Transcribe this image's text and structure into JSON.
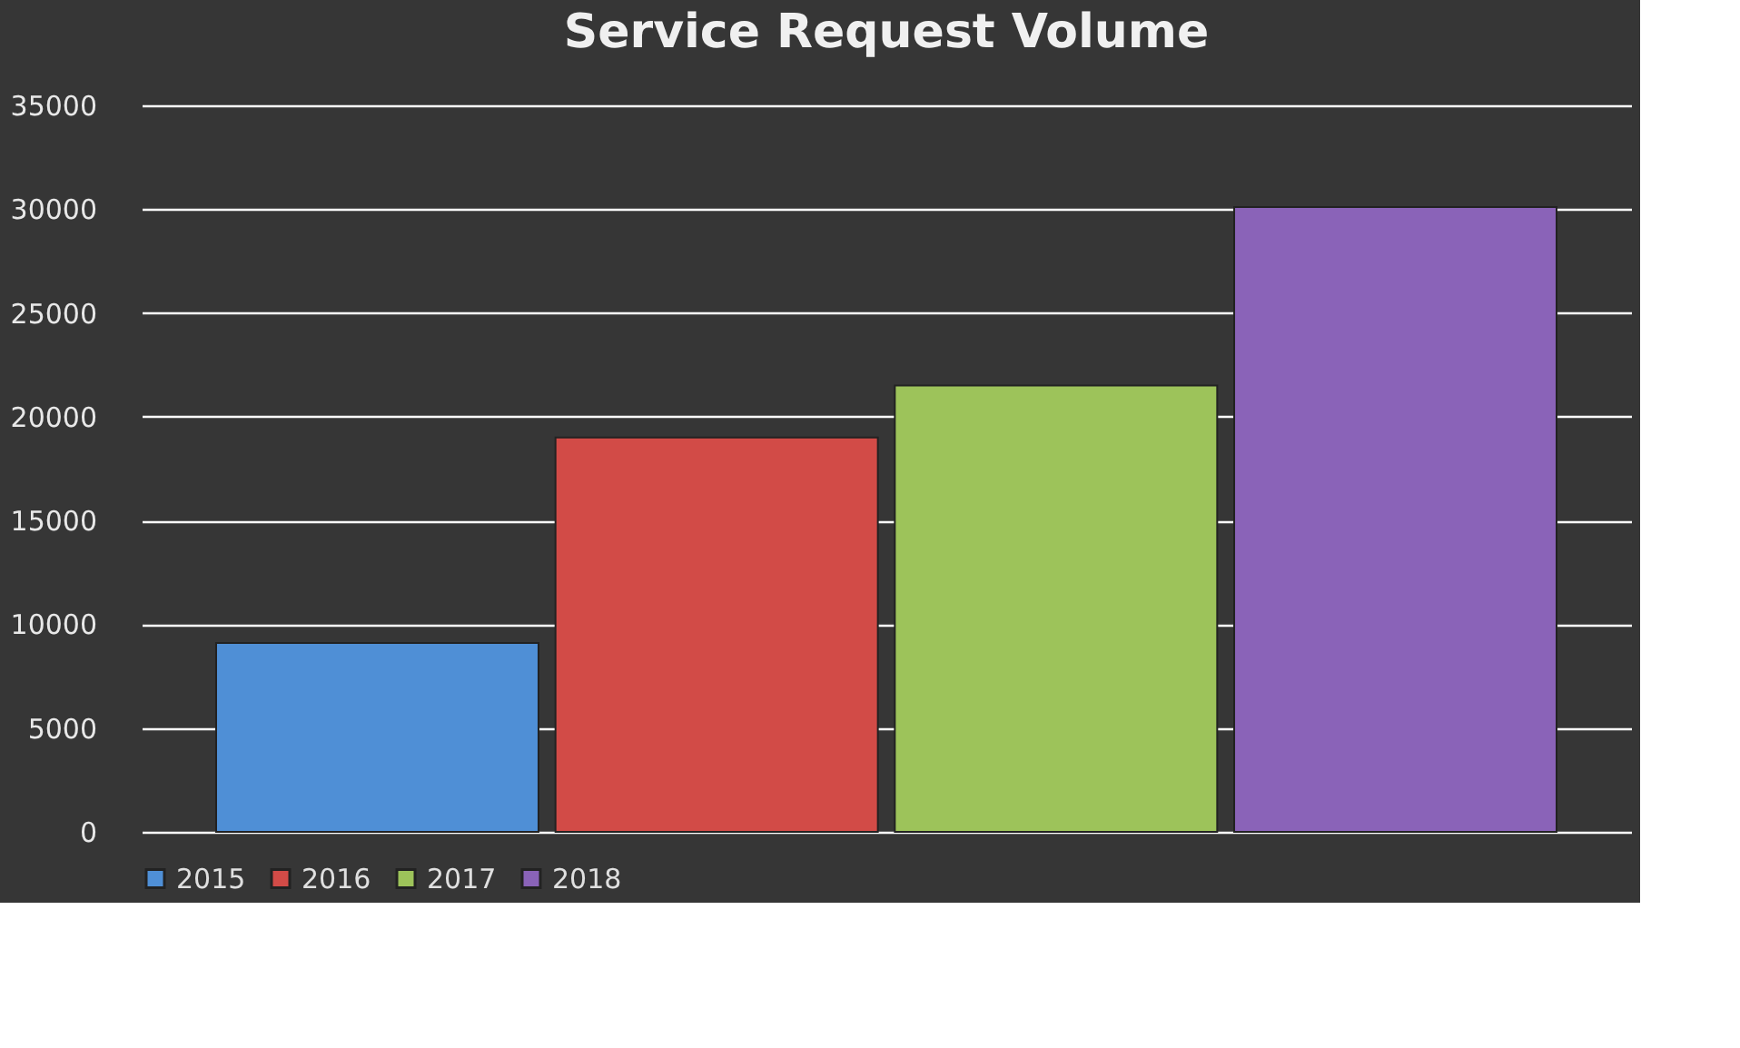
{
  "chart_data": {
    "type": "bar",
    "title": "Service Request  Volume",
    "categories": [
      null
    ],
    "series": [
      {
        "name": "2015",
        "color": "#4f8fd6",
        "values": [
          9100
        ]
      },
      {
        "name": "2016",
        "color": "#d24b47",
        "values": [
          19000
        ]
      },
      {
        "name": "2017",
        "color": "#9dc35a",
        "values": [
          21500
        ]
      },
      {
        "name": "2018",
        "color": "#8a63b8",
        "values": [
          30100
        ]
      }
    ],
    "ylim": [
      0,
      35000
    ],
    "yticks": [
      0,
      5000,
      10000,
      15000,
      20000,
      25000,
      30000,
      35000
    ],
    "grid": "y",
    "legend": "bottom",
    "tick_labels": "y"
  }
}
